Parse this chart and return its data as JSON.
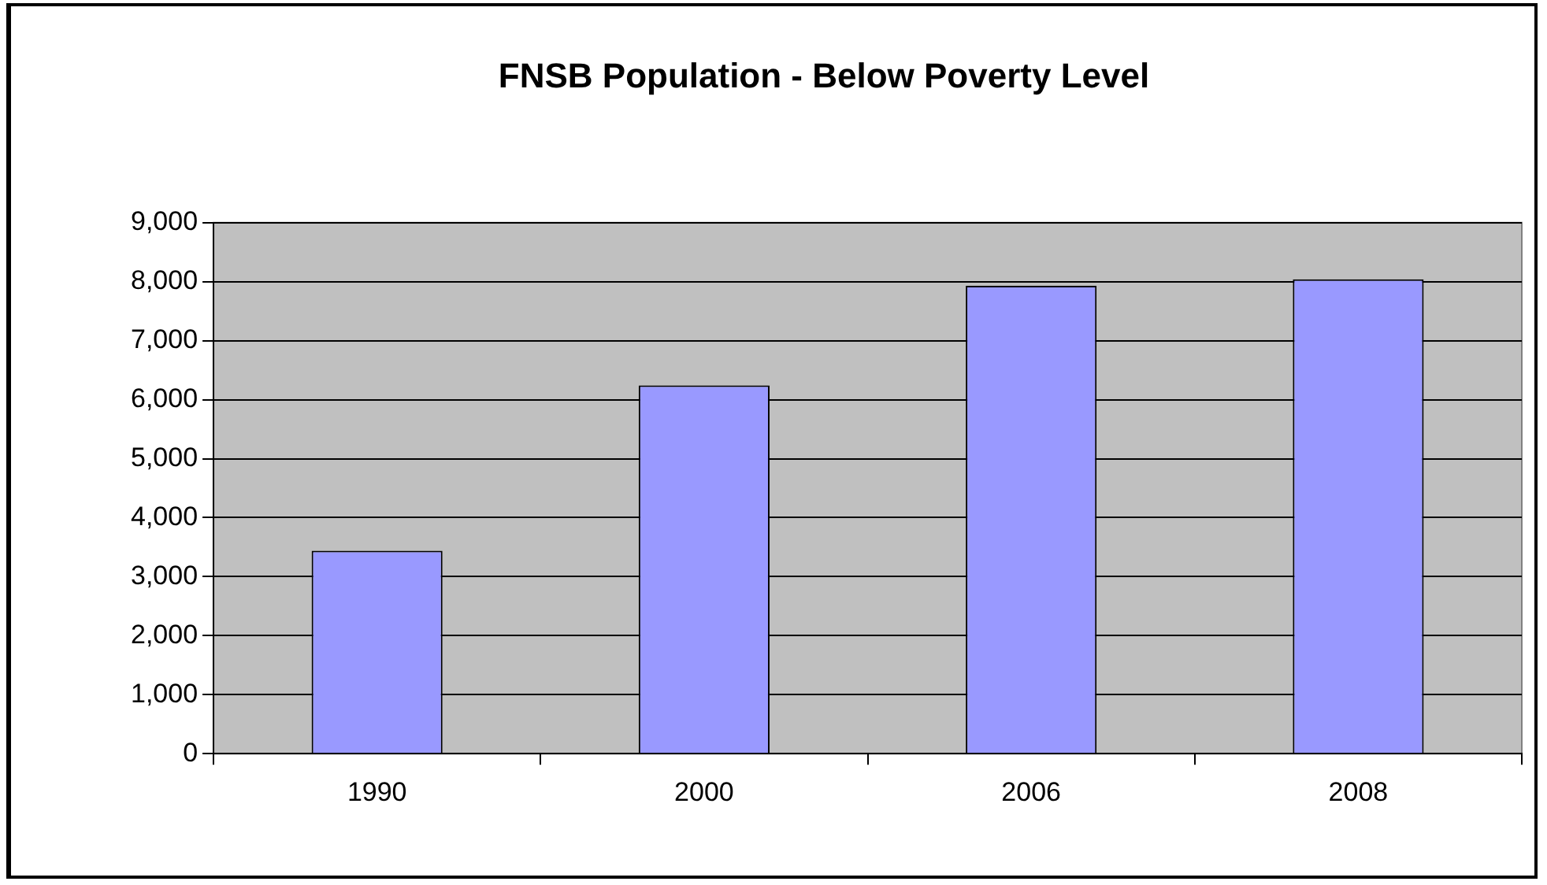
{
  "chart_data": {
    "type": "bar",
    "title": "FNSB Population - Below Poverty Level",
    "categories": [
      "1990",
      "2000",
      "2006",
      "2008"
    ],
    "values": [
      3440,
      6240,
      7930,
      8040
    ],
    "color": "#9999ff",
    "ylim": [
      0,
      9000
    ],
    "yticks": [
      {
        "value": 0,
        "label": "0"
      },
      {
        "value": 1000,
        "label": "1,000"
      },
      {
        "value": 2000,
        "label": "2,000"
      },
      {
        "value": 3000,
        "label": "3,000"
      },
      {
        "value": 4000,
        "label": "4,000"
      },
      {
        "value": 5000,
        "label": "5,000"
      },
      {
        "value": 6000,
        "label": "6,000"
      },
      {
        "value": 7000,
        "label": "7,000"
      },
      {
        "value": 8000,
        "label": "8,000"
      },
      {
        "value": 9000,
        "label": "9,000"
      }
    ],
    "grid": "y",
    "legend": false
  }
}
